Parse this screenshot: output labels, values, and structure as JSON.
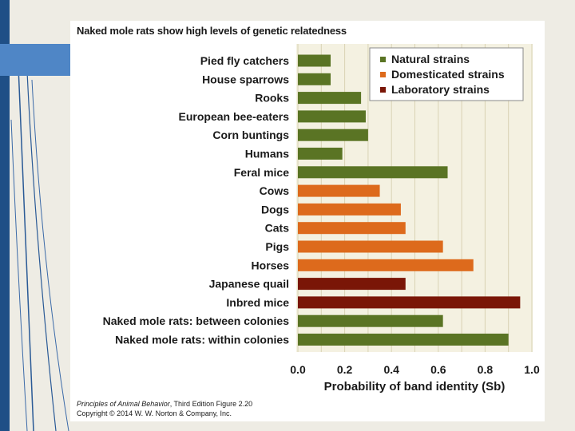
{
  "colors": {
    "natural": "#5a7424",
    "domesticated": "#dd6a1c",
    "laboratory": "#7a1607"
  },
  "chart_data": {
    "type": "bar",
    "orientation": "horizontal",
    "title": "Naked mole rats show high levels of genetic relatedness",
    "xlabel": "Probability of band identity (Sb)",
    "ylabel": "",
    "xlim": [
      0,
      1.0
    ],
    "xticks": [
      "0.0",
      "0.2",
      "0.4",
      "0.6",
      "0.8",
      "1.0"
    ],
    "grid": true,
    "legend_position": "top-right",
    "legend": [
      {
        "key": "natural",
        "label": "Natural strains"
      },
      {
        "key": "domesticated",
        "label": "Domesticated strains"
      },
      {
        "key": "laboratory",
        "label": "Laboratory strains"
      }
    ],
    "categories": [
      "Pied fly catchers",
      "House sparrows",
      "Rooks",
      "European bee-eaters",
      "Corn buntings",
      "Humans",
      "Feral mice",
      "Cows",
      "Dogs",
      "Cats",
      "Pigs",
      "Horses",
      "Japanese quail",
      "Inbred mice",
      "Naked mole rats: between colonies",
      "Naked mole rats: within colonies"
    ],
    "values": [
      0.14,
      0.14,
      0.27,
      0.29,
      0.3,
      0.19,
      0.64,
      0.35,
      0.44,
      0.46,
      0.62,
      0.75,
      0.46,
      0.95,
      0.62,
      0.9
    ],
    "groups": [
      "natural",
      "natural",
      "natural",
      "natural",
      "natural",
      "natural",
      "natural",
      "domesticated",
      "domesticated",
      "domesticated",
      "domesticated",
      "domesticated",
      "laboratory",
      "laboratory",
      "natural",
      "natural"
    ]
  },
  "credit": {
    "book_title": "Principles of Animal Behavior",
    "edition_and_figure": ", Third Edition  Figure 2.20",
    "copyright": "Copyright © 2014 W. W. Norton & Company, Inc."
  }
}
